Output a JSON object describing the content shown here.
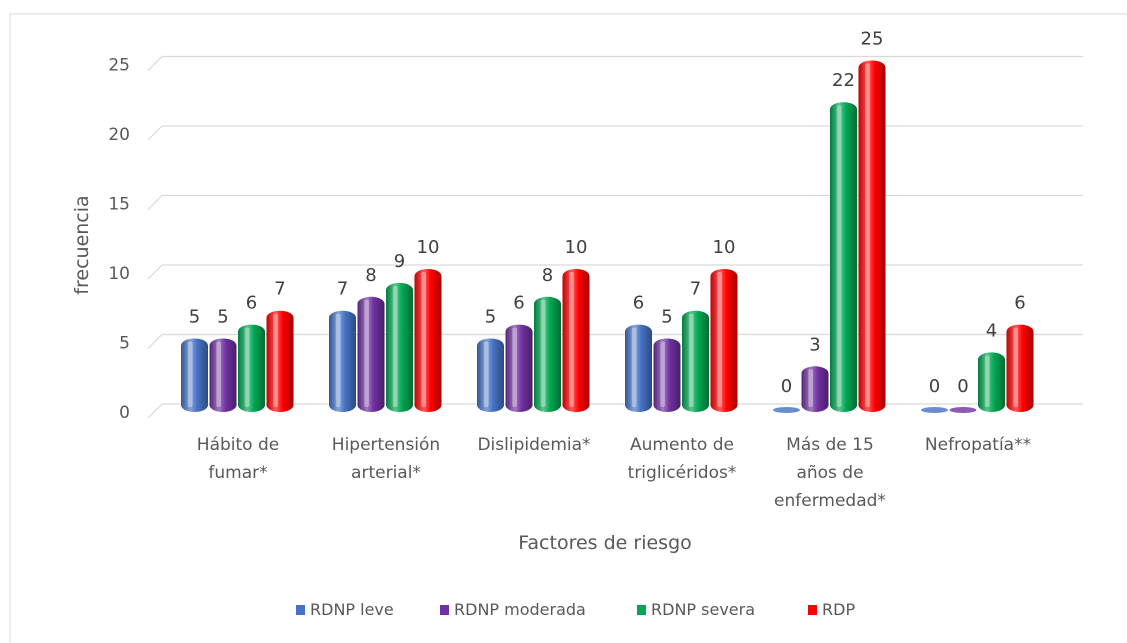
{
  "chart_data": {
    "type": "bar",
    "title": "",
    "xlabel": "Factores de riesgo",
    "ylabel": "frecuencia",
    "ylim": [
      0,
      25
    ],
    "yticks": [
      0,
      5,
      10,
      15,
      20,
      25
    ],
    "grid": true,
    "legend_position": "bottom",
    "categories": [
      [
        "Hábito de",
        "fumar*"
      ],
      [
        "Hipertensión",
        "arterial*"
      ],
      [
        "Dislipidemia*"
      ],
      [
        "Aumento de",
        "triglicéridos*"
      ],
      [
        "Más de 15",
        "años de",
        "enfermedad*"
      ],
      [
        "Nefropatía**"
      ]
    ],
    "series": [
      {
        "name": "RDNP leve",
        "color": "#4472c4",
        "values": [
          5,
          7,
          5,
          6,
          0,
          0
        ]
      },
      {
        "name": "RDNP moderada",
        "color": "#7030a0",
        "values": [
          5,
          8,
          6,
          5,
          3,
          0
        ]
      },
      {
        "name": "RDNP severa",
        "color": "#00a651",
        "values": [
          6,
          9,
          8,
          7,
          22,
          4
        ]
      },
      {
        "name": "RDP",
        "color": "#ff0000",
        "values": [
          7,
          10,
          10,
          10,
          25,
          6
        ]
      }
    ]
  }
}
